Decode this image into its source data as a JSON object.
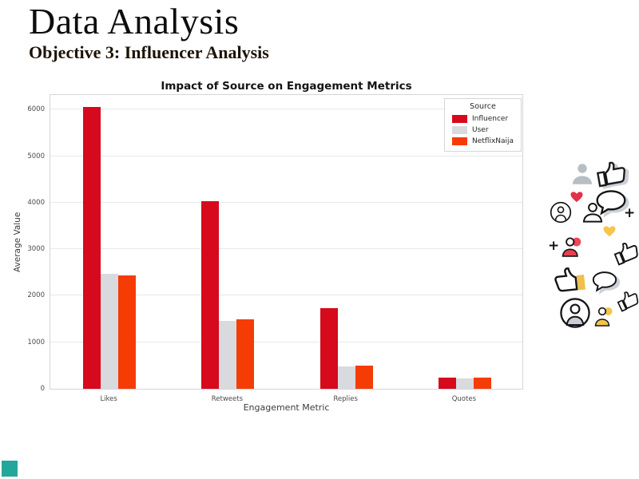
{
  "slide": {
    "title": "Data Analysis",
    "subtitle": "Objective 3: Influencer Analysis"
  },
  "chart_data": {
    "type": "bar",
    "title": "Impact of Source on Engagement Metrics",
    "xlabel": "Engagement Metric",
    "ylabel": "Average Value",
    "categories": [
      "Likes",
      "Retweets",
      "Replies",
      "Quotes"
    ],
    "series": [
      {
        "name": "Influencer",
        "color": "#d6091d",
        "values": [
          6050,
          4030,
          1740,
          240
        ]
      },
      {
        "name": "User",
        "color": "#d9dade",
        "values": [
          2480,
          1460,
          480,
          215
        ]
      },
      {
        "name": "NetflixNaija",
        "color": "#f53c05",
        "values": [
          2440,
          1500,
          490,
          235
        ]
      }
    ],
    "legend_title": "Source",
    "legend_position": "upper right",
    "ylim": [
      0,
      6350
    ],
    "yticks": [
      0,
      1000,
      2000,
      3000,
      4000,
      5000,
      6000
    ],
    "grid": true
  },
  "decorative_icons": [
    "person-silhouette-icon",
    "thumbs-up-icon",
    "heart-icon",
    "speech-bubble-icon",
    "person-circle-icon",
    "person-outline-icon",
    "plus-icon",
    "heart-yellow-icon",
    "plus-icon",
    "person-red-icon",
    "thumbs-up-icon",
    "thumbs-up-yellow-icon",
    "speech-bubble-icon",
    "thumbs-up-icon",
    "person-circle-gray-icon",
    "person-yellow-icon"
  ],
  "icon_plus_glyph": "+",
  "colors": {
    "accent_square": "#23a79b",
    "heart_red": "#e3314a",
    "heart_yellow": "#f5c54f",
    "icon_gray": "#b7bec6",
    "icon_outline": "#141414"
  }
}
